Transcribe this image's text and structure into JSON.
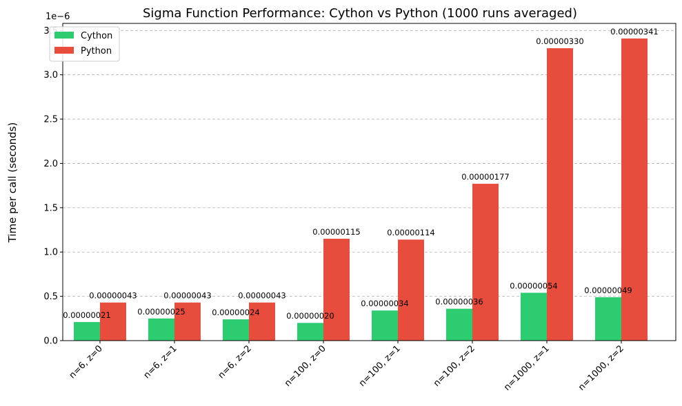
{
  "chart_data": {
    "type": "bar",
    "title": "Sigma Function Performance: Cython vs Python (1000 runs averaged)",
    "xlabel": "",
    "ylabel": "Time per call (seconds)",
    "y_offset_label": "1e−6",
    "ylim": [
      0,
      3.58e-06
    ],
    "yticks": [
      0,
      5e-07,
      1e-06,
      1.5e-06,
      2e-06,
      2.5e-06,
      3e-06,
      3.5e-06
    ],
    "ytick_labels": [
      "0.0",
      "0.5",
      "1.0",
      "1.5",
      "2.0",
      "2.5",
      "3.0",
      "3.5"
    ],
    "grid": "y-dashed",
    "legend_position": "top-left",
    "categories": [
      "n=6, z=0",
      "n=6, z=1",
      "n=6, z=2",
      "n=100, z=0",
      "n=100, z=1",
      "n=100, z=2",
      "n=1000, z=1",
      "n=1000, z=2"
    ],
    "series": [
      {
        "name": "Cython",
        "color": "#2ecc71",
        "values": [
          2.1e-07,
          2.5e-07,
          2.4e-07,
          2e-07,
          3.4e-07,
          3.6e-07,
          5.4e-07,
          4.9e-07
        ],
        "labels": [
          "0.00000021",
          "0.00000025",
          "0.00000024",
          "0.00000020",
          "0.00000034",
          "0.00000036",
          "0.00000054",
          "0.00000049"
        ]
      },
      {
        "name": "Python",
        "color": "#e74c3c",
        "values": [
          4.3e-07,
          4.3e-07,
          4.3e-07,
          1.15e-06,
          1.14e-06,
          1.77e-06,
          3.3e-06,
          3.41e-06
        ],
        "labels": [
          "0.00000043",
          "0.00000043",
          "0.00000043",
          "0.00000115",
          "0.00000114",
          "0.00000177",
          "0.00000330",
          "0.00000341"
        ]
      }
    ]
  }
}
